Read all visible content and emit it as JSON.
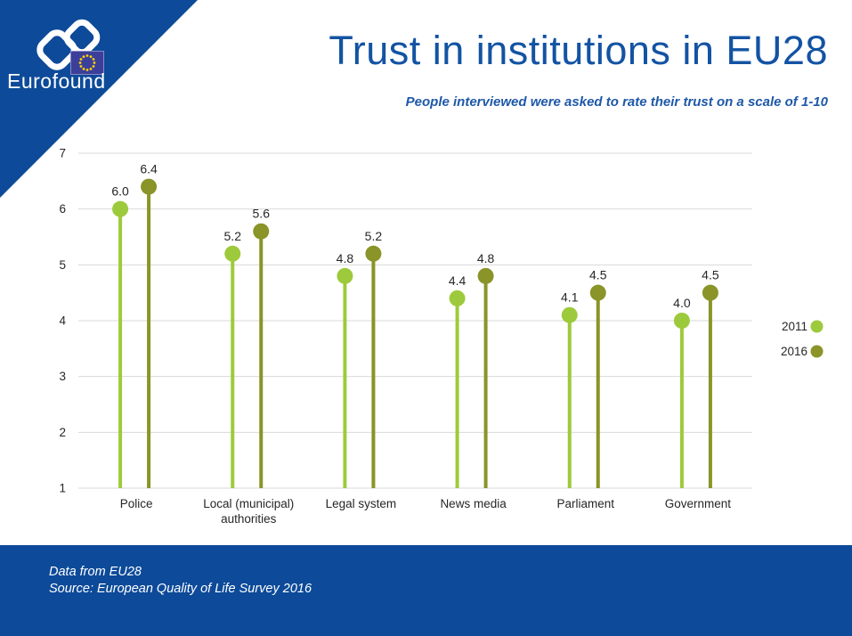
{
  "brand": {
    "logo_text": "Eurofound",
    "corner_color": "#0d4a99",
    "flag_color": "#3c3f99",
    "star_color": "#ffd200"
  },
  "header": {
    "title": "Trust in institutions in EU28",
    "subtitle": "People interviewed were asked to rate their trust on a scale of 1-10",
    "title_color": "#1353a3"
  },
  "chart_data": {
    "type": "scatter",
    "variant": "lollipop",
    "title": "Trust in institutions in EU28",
    "categories": [
      "Police",
      "Local (municipal) authorities",
      "Legal system",
      "News media",
      "Parliament",
      "Government"
    ],
    "category_lines": [
      [
        "Police"
      ],
      [
        "Local (municipal)",
        "authorities"
      ],
      [
        "Legal system"
      ],
      [
        "News media"
      ],
      [
        "Parliament"
      ],
      [
        "Government"
      ]
    ],
    "series": [
      {
        "name": "2011",
        "color": "#9dca3c",
        "values": [
          6.0,
          5.2,
          4.8,
          4.4,
          4.1,
          4.0
        ]
      },
      {
        "name": "2016",
        "color": "#8a9428",
        "values": [
          6.4,
          5.6,
          5.2,
          4.8,
          4.5,
          4.5
        ]
      }
    ],
    "value_label_decimals": 1,
    "ylim": [
      1,
      7
    ],
    "yticks": [
      1,
      2,
      3,
      4,
      5,
      6,
      7
    ],
    "grid": true,
    "gridline_color": "#d9d9d9",
    "text_color": "#262626",
    "legend_position": "right",
    "xlabel": "",
    "ylabel": ""
  },
  "footer": {
    "line1": "Data from EU28",
    "line2": "Source: European Quality of Life Survey 2016"
  }
}
